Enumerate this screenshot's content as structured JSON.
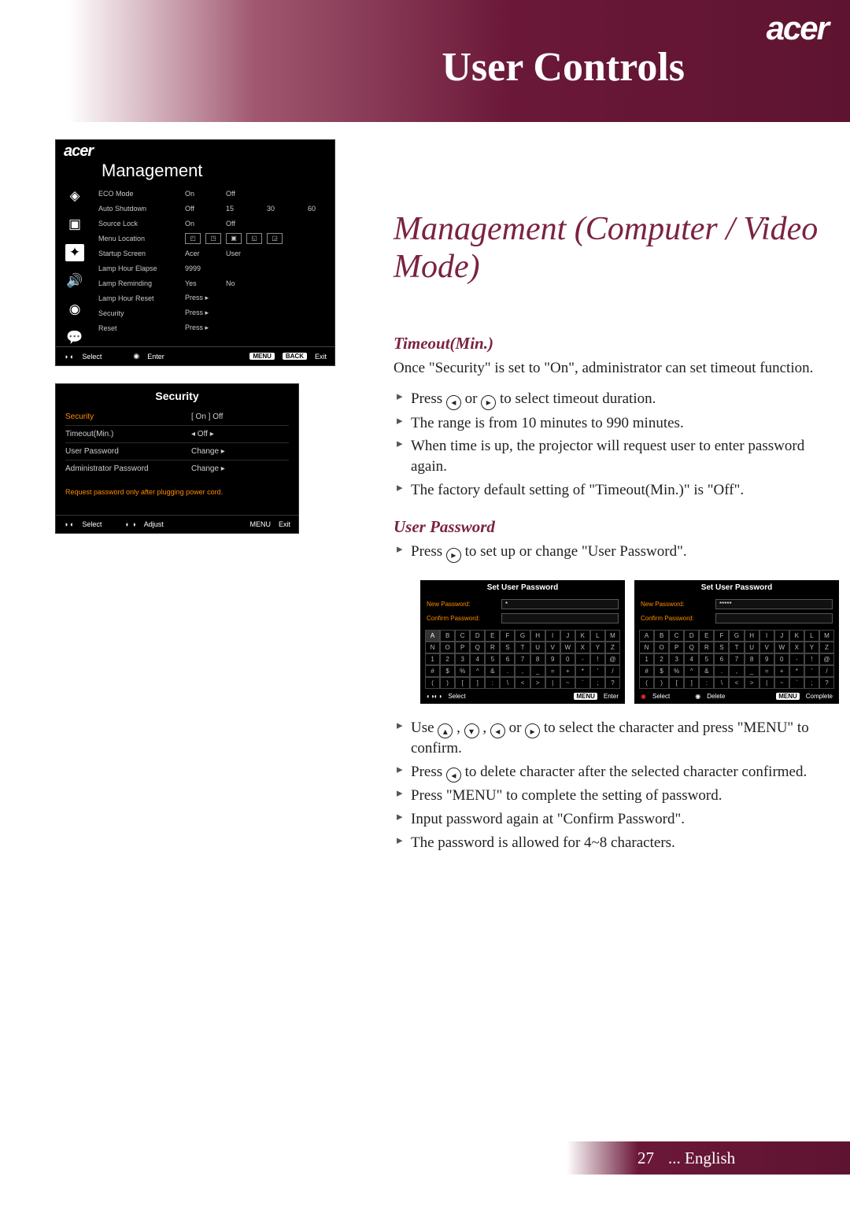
{
  "brand": "acer",
  "header_title": "User Controls",
  "section_title": "Management (Computer / Video Mode)",
  "osd": {
    "title": "Management",
    "rows": [
      {
        "label": "ECO Mode",
        "opts": [
          "On",
          "Off"
        ]
      },
      {
        "label": "Auto Shutdown",
        "opts": [
          "Off",
          "15",
          "30",
          "60"
        ]
      },
      {
        "label": "Source Lock",
        "opts": [
          "On",
          "Off"
        ]
      },
      {
        "label": "Menu Location",
        "icon_row": true
      },
      {
        "label": "Startup Screen",
        "opts": [
          "Acer",
          "User"
        ]
      },
      {
        "label": "Lamp Hour Elapse",
        "opts": [
          "9999"
        ]
      },
      {
        "label": "Lamp Reminding",
        "opts": [
          "Yes",
          "No"
        ]
      },
      {
        "label": "Lamp Hour Reset",
        "opts": [
          "Press ▸"
        ]
      },
      {
        "label": "Security",
        "opts": [
          "Press ▸"
        ]
      },
      {
        "label": "Reset",
        "opts": [
          "Press ▸"
        ]
      }
    ],
    "footer": {
      "select": "Select",
      "enter": "Enter",
      "menu": "MENU",
      "back": "BACK",
      "exit": "Exit"
    }
  },
  "security": {
    "title": "Security",
    "rows": [
      {
        "label": "Security",
        "val": "[   On   ]        Off",
        "orange": true
      },
      {
        "label": "Timeout(Min.)",
        "val": "◂ Off ▸"
      },
      {
        "label": "User Password",
        "val": "Change ▸"
      },
      {
        "label": "Administrator Password",
        "val": "Change ▸"
      }
    ],
    "note": "Request password only after plugging power cord.",
    "footer": {
      "select": "Select",
      "adjust": "Adjust",
      "menu": "MENU",
      "exit": "Exit"
    }
  },
  "timeout": {
    "title": "Timeout(Min.)",
    "intro": "Once \"Security\" is set to \"On\", administrator can set timeout function.",
    "bullets": [
      "Press ◀ or ▶ to select timeout duration.",
      "The range is from 10 minutes to 990 minutes.",
      "When time is up, the projector will request user to enter password again.",
      "The factory default setting of \"Timeout(Min.)\" is \"Off\"."
    ]
  },
  "userpw": {
    "title": "User Password",
    "bullet_top": "Press ▶ to set up or change \"User Password\".",
    "bullets": [
      "Use ▲ , ▼ , ◀ or ▶ to select the character and press \"MENU\" to confirm.",
      "Press ◀ to delete character after the selected character confirmed.",
      "Press \"MENU\" to complete the setting of password.",
      "Input password again at \"Confirm Password\".",
      "The password is allowed for 4~8 characters."
    ]
  },
  "kb": {
    "title": "Set User Password",
    "new_pw": "New Password:",
    "confirm_pw": "Confirm Password:",
    "val1": "*",
    "val2": "*****",
    "rows": [
      [
        "A",
        "B",
        "C",
        "D",
        "E",
        "F",
        "G",
        "H",
        "I",
        "J",
        "K",
        "L",
        "M"
      ],
      [
        "N",
        "O",
        "P",
        "Q",
        "R",
        "S",
        "T",
        "U",
        "V",
        "W",
        "X",
        "Y",
        "Z"
      ],
      [
        "1",
        "2",
        "3",
        "4",
        "5",
        "6",
        "7",
        "8",
        "9",
        "0",
        "-",
        "!",
        "@"
      ],
      [
        "#",
        "$",
        "%",
        "^",
        "&",
        ".",
        ",",
        "_",
        "=",
        "+",
        "*",
        "'",
        "/"
      ],
      [
        "(",
        ")",
        "[",
        "]",
        ":",
        "\\",
        "<",
        ">",
        "|",
        "~",
        "`",
        ";",
        "?"
      ]
    ],
    "footer1": {
      "select": "Select",
      "menu": "MENU",
      "enter": "Enter"
    },
    "footer2": {
      "select": "Select",
      "delete": "Delete",
      "menu": "MENU",
      "complete": "Complete"
    }
  },
  "page": {
    "num": "27",
    "lang": "... English"
  }
}
